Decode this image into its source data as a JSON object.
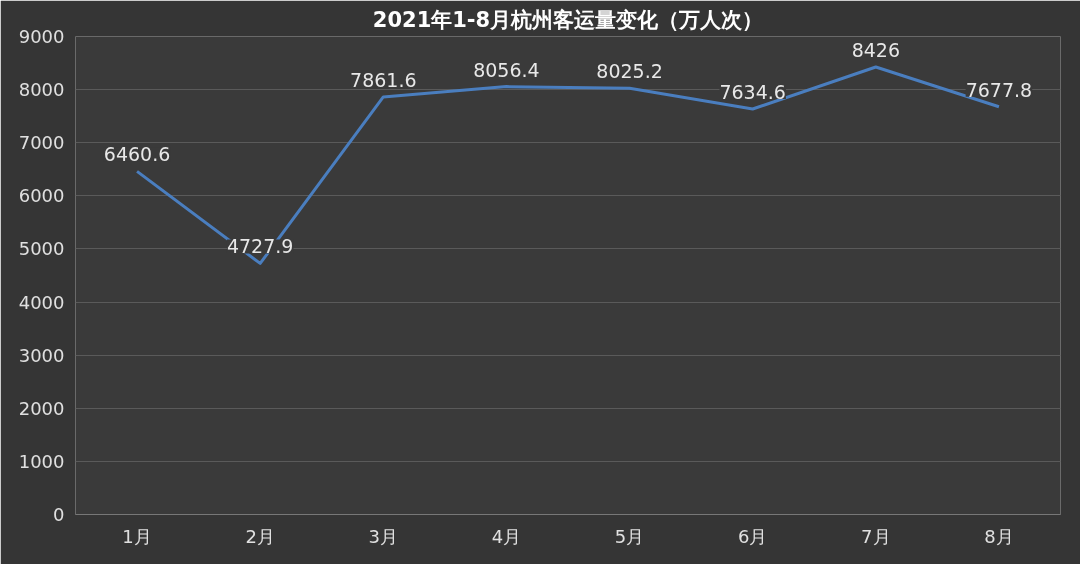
{
  "chart_data": {
    "type": "line",
    "title": "2021年1-8月杭州客运量变化（万人次）",
    "categories": [
      "1月",
      "2月",
      "3月",
      "4月",
      "5月",
      "6月",
      "7月",
      "8月"
    ],
    "series": [
      {
        "color": "#4a7ebf",
        "values": [
          6460.6,
          4727.9,
          7861.6,
          8056.4,
          8025.2,
          7634.6,
          8426,
          7677.8
        ]
      }
    ],
    "ylim": [
      0,
      9000
    ],
    "yticks": [
      0,
      1000,
      2000,
      3000,
      4000,
      5000,
      6000,
      7000,
      8000,
      9000
    ],
    "grid": "y",
    "data_labels": true,
    "marker": "none",
    "line_style": "solid"
  }
}
